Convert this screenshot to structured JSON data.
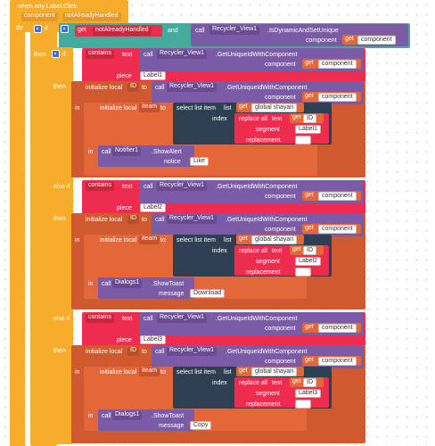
{
  "event": {
    "title": "when any Label.Click",
    "param1": "component",
    "param2": "notAlreadyHandled",
    "do": "do"
  },
  "ifblock": {
    "if": "if",
    "then": "then",
    "elseif": "else if"
  },
  "condition": {
    "get": "get",
    "var": "notAlreadyHandled",
    "and": "and",
    "call": "call",
    "component": "Recycler_View1",
    "method": ".IsDynamicAndSetUnique",
    "arg": "component",
    "argvar": "component"
  },
  "common": {
    "contains": "contains",
    "text": "text",
    "piece": "piece",
    "call": "call",
    "get": "get",
    "component": "component",
    "recycler": "Recycler_View1",
    "getunique": ".GetUniqueIdWithComponent",
    "init_local": "initialize local",
    "id_name": "ID",
    "to": "to",
    "in": "in",
    "iteam": "iteam",
    "select_list": "select list item",
    "list": "list",
    "index": "index",
    "global_shayari": "global shayari",
    "replace_all": "replace all",
    "segment": "segment",
    "replacement": "replacement",
    "get_id": "ID",
    "empty_string": ""
  },
  "branches": [
    {
      "label_piece": "Label1",
      "action_component": "Notifier1",
      "action_method": ".ShowAlert",
      "action_arg": "notice",
      "action_value": "Like"
    },
    {
      "label_piece": "Label2",
      "action_component": "Dialogs1",
      "action_method": ".ShowToast",
      "action_arg": "message",
      "action_value": "Download"
    },
    {
      "label_piece": "Label3",
      "action_component": "Dialogs1",
      "action_method": ".ShowToast",
      "action_arg": "message",
      "action_value": "Copy"
    }
  ],
  "colors": {
    "event": "#f6ad2b",
    "control": "#f6ad2b",
    "logic": "#45ab9c",
    "component": "#7c5ba6",
    "variable": "#e4673a",
    "text": "#ed2c4f",
    "list": "#2f3f52",
    "workspace": "#ffffff"
  }
}
